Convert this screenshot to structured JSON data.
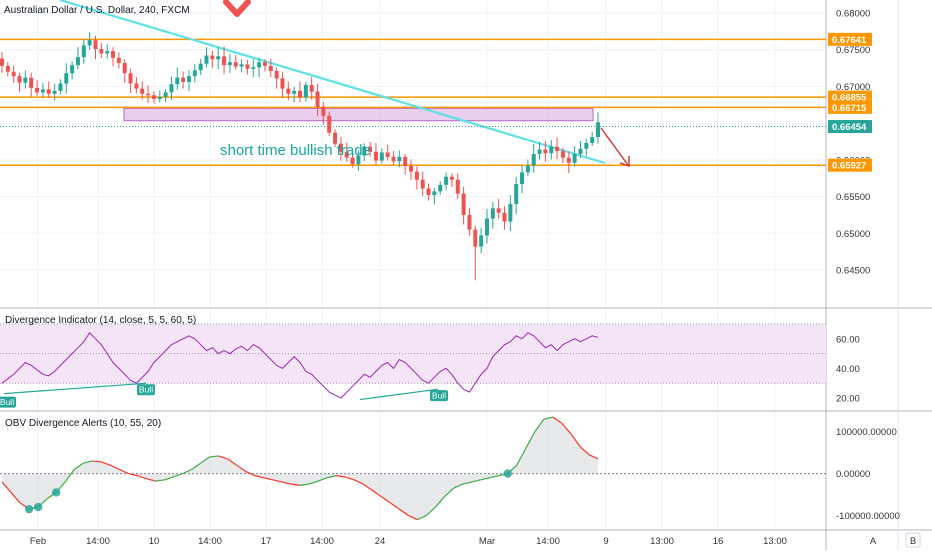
{
  "header": {
    "title": "Australian Dollar / U.S. Dollar, 240, FXCM"
  },
  "colors": {
    "up": "#26a69a",
    "down": "#ef5350",
    "orange": "#ff9800",
    "cyan": "#5ce1e6",
    "zone_fill": "#e1bee7",
    "zone_stroke": "#ba68c8",
    "arrow": "#d32f2f",
    "text_teal": "#19a7a3",
    "div_band": "#f3e5f5",
    "div_line": "#9c27b0",
    "obv_up": "#4caf50",
    "obv_down": "#f44336"
  },
  "annotation": {
    "text": "short time bullish trade"
  },
  "chart_data": [
    {
      "type": "candlestick",
      "id": "price",
      "y_ticks": [
        "0.68000",
        "0.67500",
        "0.67000",
        "0.66500",
        "0.66000",
        "0.65500",
        "0.65000",
        "0.64500"
      ],
      "ylim": [
        0.6425,
        0.6815
      ],
      "x_ticks": [
        "Feb",
        "14:00",
        "10",
        "14:00",
        "17",
        "14:00",
        "24",
        "Mar",
        "14:00",
        "9",
        "13:00",
        "16",
        "13:00"
      ],
      "horizontal_levels": [
        0.67641,
        0.66855,
        0.66715,
        0.65927
      ],
      "current_price": 0.66454,
      "price_labels": [
        "0.67641",
        "0.66855",
        "0.66715",
        "0.66454",
        "0.65927"
      ],
      "candle_closes": [
        0.6728,
        0.672,
        0.6714,
        0.6705,
        0.6712,
        0.6698,
        0.6692,
        0.6696,
        0.669,
        0.6694,
        0.6704,
        0.6718,
        0.6729,
        0.674,
        0.6756,
        0.6763,
        0.6751,
        0.6745,
        0.6748,
        0.6739,
        0.6732,
        0.6718,
        0.6704,
        0.6697,
        0.669,
        0.6688,
        0.6683,
        0.6686,
        0.6692,
        0.6703,
        0.6712,
        0.6706,
        0.6714,
        0.6722,
        0.6731,
        0.6742,
        0.6737,
        0.6741,
        0.6729,
        0.6733,
        0.6727,
        0.673,
        0.6724,
        0.6726,
        0.6733,
        0.6728,
        0.6721,
        0.6711,
        0.6697,
        0.669,
        0.6694,
        0.6685,
        0.6702,
        0.6693,
        0.6672,
        0.666,
        0.6637,
        0.6622,
        0.6611,
        0.6603,
        0.6594,
        0.6606,
        0.6618,
        0.6611,
        0.6599,
        0.661,
        0.6604,
        0.6598,
        0.6604,
        0.6592,
        0.6584,
        0.6573,
        0.6561,
        0.6552,
        0.6557,
        0.6566,
        0.6577,
        0.6573,
        0.6554,
        0.6525,
        0.6505,
        0.6482,
        0.6497,
        0.652,
        0.6534,
        0.6528,
        0.6516,
        0.654,
        0.6567,
        0.6583,
        0.6592,
        0.6608,
        0.6614,
        0.6609,
        0.6618,
        0.6612,
        0.6603,
        0.6596,
        0.6608,
        0.6615,
        0.6623,
        0.6631,
        0.6651
      ],
      "labels": {
        "zone": "",
        "annotation": "short time bullish trade"
      }
    },
    {
      "type": "line",
      "id": "divergence",
      "title": "Divergence Indicator (14, close, 5, 5, 60, 5)",
      "y_ticks": [
        "60.00",
        "40.00",
        "20.00"
      ],
      "ylim": [
        16,
        74
      ],
      "band": [
        30,
        70
      ],
      "midline": 50,
      "badges": [
        "Bull",
        "Bull",
        "Bull"
      ],
      "values": [
        30,
        33,
        36,
        40,
        44,
        42,
        39,
        36,
        35,
        38,
        42,
        46,
        50,
        54,
        58,
        64,
        60,
        56,
        50,
        44,
        40,
        36,
        32,
        30,
        34,
        38,
        44,
        48,
        52,
        56,
        58,
        60,
        62,
        60,
        56,
        52,
        54,
        50,
        52,
        50,
        53,
        55,
        52,
        56,
        54,
        50,
        46,
        42,
        40,
        44,
        48,
        44,
        38,
        36,
        32,
        28,
        24,
        22,
        20,
        24,
        28,
        32,
        36,
        34,
        38,
        42,
        44,
        40,
        46,
        44,
        40,
        36,
        32,
        30,
        34,
        38,
        40,
        36,
        30,
        26,
        24,
        30,
        36,
        40,
        48,
        52,
        56,
        58,
        62,
        60,
        64,
        62,
        58,
        54,
        56,
        52,
        56,
        58,
        60,
        58,
        60,
        62,
        61
      ]
    },
    {
      "type": "area",
      "id": "obv",
      "title": "OBV Divergence Alerts (10, 55, 20)",
      "y_ticks": [
        "100000.00000",
        "0.00000",
        "-100000.00000"
      ],
      "ylim": [
        -130000,
        140000
      ],
      "values": [
        -20000,
        -45000,
        -70000,
        -85000,
        -80000,
        -60000,
        -45000,
        -20000,
        10000,
        25000,
        30000,
        28000,
        20000,
        10000,
        0,
        -5000,
        -12000,
        -18000,
        -15000,
        -8000,
        0,
        10000,
        25000,
        40000,
        42000,
        35000,
        20000,
        5000,
        -5000,
        -10000,
        -15000,
        -20000,
        -25000,
        -28000,
        -25000,
        -18000,
        -10000,
        -5000,
        -8000,
        -15000,
        -25000,
        -40000,
        -55000,
        -70000,
        -85000,
        -100000,
        -110000,
        -100000,
        -80000,
        -55000,
        -35000,
        -25000,
        -20000,
        -15000,
        -10000,
        -5000,
        0,
        20000,
        60000,
        100000,
        130000,
        135000,
        120000,
        95000,
        65000,
        45000,
        35000
      ],
      "alert_dots": 4
    }
  ],
  "axis_buttons": {
    "auto": "A",
    "log": "B"
  }
}
